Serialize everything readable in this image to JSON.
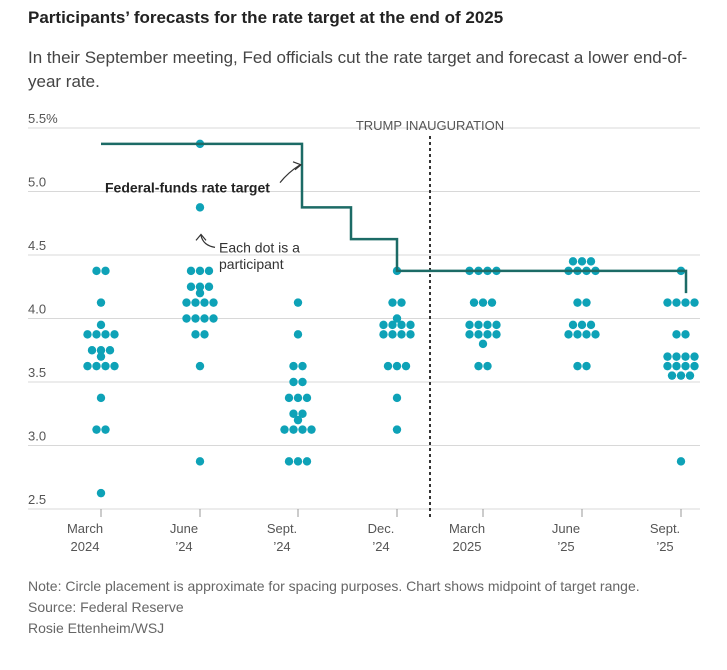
{
  "header": {
    "title": "Participants’ forecasts for the rate target at the end of 2025",
    "subtitle": "In their September meeting, Fed officials cut the rate target and forecast a lower end-of-year rate."
  },
  "footer": {
    "note": "Note: Circle placement is approximate for spacing purposes. Chart shows midpoint of target range.",
    "source": "Source: Federal Reserve",
    "credit": "Rosie Ettenheim/WSJ"
  },
  "chart_data": {
    "type": "scatter",
    "title": "Participants’ forecasts for the rate target at the end of 2025",
    "ylim": [
      2.5,
      5.5
    ],
    "yticks": [
      {
        "value": 5.5,
        "label": "5.5%"
      },
      {
        "value": 5.0,
        "label": "5.0"
      },
      {
        "value": 4.5,
        "label": "4.5"
      },
      {
        "value": 4.0,
        "label": "4.0"
      },
      {
        "value": 3.5,
        "label": "3.5"
      },
      {
        "value": 3.0,
        "label": "3.0"
      },
      {
        "value": 2.5,
        "label": "2.5"
      }
    ],
    "grid": "horizontal",
    "meetings": [
      {
        "line1": "March",
        "line2": "2024",
        "dots": [
          4.375,
          4.375,
          4.125,
          3.875,
          3.875,
          3.875,
          3.875,
          3.875,
          3.75,
          3.75,
          3.75,
          3.625,
          3.625,
          3.625,
          3.625,
          3.625,
          3.375,
          3.125,
          3.125,
          2.625
        ]
      },
      {
        "line1": "June",
        "line2": "’24",
        "dots": [
          5.375,
          4.875,
          4.375,
          4.375,
          4.375,
          4.25,
          4.25,
          4.25,
          4.125,
          4.125,
          4.125,
          4.125,
          4.125,
          4.0,
          4.0,
          4.0,
          4.0,
          3.875,
          3.875,
          3.625,
          2.875
        ]
      },
      {
        "line1": "Sept.",
        "line2": "’24",
        "dots": [
          4.125,
          3.875,
          3.625,
          3.625,
          3.5,
          3.5,
          3.375,
          3.375,
          3.375,
          3.25,
          3.25,
          3.125,
          3.125,
          3.125,
          3.125,
          3.125,
          2.875,
          2.875,
          2.875
        ]
      },
      {
        "line1": "Dec.",
        "line2": "’24",
        "dots": [
          4.375,
          4.125,
          4.125,
          4.0,
          3.875,
          3.875,
          3.875,
          3.875,
          3.875,
          3.875,
          3.875,
          3.875,
          3.625,
          3.625,
          3.625,
          3.375,
          3.125
        ]
      },
      {
        "line1": "March",
        "line2": "2025",
        "dots": [
          4.375,
          4.375,
          4.375,
          4.375,
          4.125,
          4.125,
          4.125,
          3.875,
          3.875,
          3.875,
          3.875,
          3.875,
          3.875,
          3.875,
          3.875,
          3.875,
          3.625,
          3.625
        ]
      },
      {
        "line1": "June",
        "line2": "’25",
        "dots": [
          4.375,
          4.375,
          4.375,
          4.375,
          4.375,
          4.375,
          4.375,
          4.125,
          4.125,
          3.875,
          3.875,
          3.875,
          3.875,
          3.875,
          3.875,
          3.875,
          3.625,
          3.625
        ]
      },
      {
        "line1": "Sept.",
        "line2": "’25",
        "dots": [
          4.375,
          4.125,
          4.125,
          4.125,
          4.125,
          3.875,
          3.875,
          3.625,
          3.625,
          3.625,
          3.625,
          3.625,
          3.625,
          3.625,
          3.625,
          3.625,
          3.625,
          3.625,
          2.875
        ]
      }
    ],
    "rate_target": [
      {
        "x": "March 2024",
        "y": 5.375
      },
      {
        "x": "Sept. 2024",
        "y": 4.875
      },
      {
        "x": "Nov. 2024",
        "y": 4.625
      },
      {
        "x": "Dec. 2024",
        "y": 4.375
      },
      {
        "x": "Sept. 2025",
        "y": 4.375
      }
    ],
    "annotations": {
      "rate_line_label": "Federal-funds rate target",
      "dot_label_line1": "Each dot is a",
      "dot_label_line2": "participant",
      "event_label": "TRUMP INAUGURATION"
    },
    "colors": {
      "dot": "#0ea2b7",
      "rate_line": "#1c6b66",
      "grid": "#d8d8d8",
      "divider": "#333333"
    }
  }
}
